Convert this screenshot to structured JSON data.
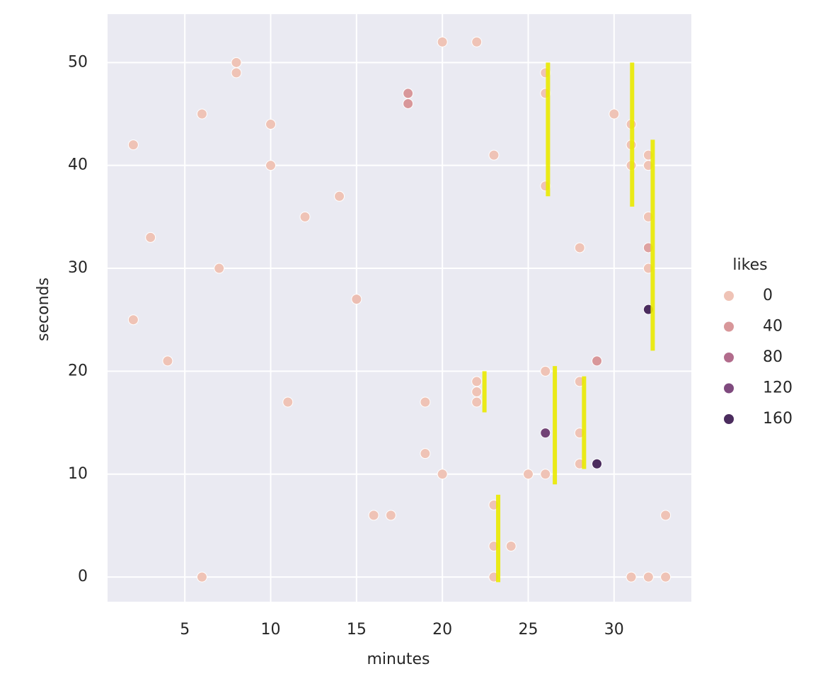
{
  "chart_data": {
    "type": "scatter",
    "xlabel": "minutes",
    "ylabel": "seconds",
    "xlim": [
      0.5,
      34.5
    ],
    "ylim": [
      -2.4,
      54.7
    ],
    "xticks": [
      5,
      10,
      15,
      20,
      25,
      30
    ],
    "yticks": [
      0,
      10,
      20,
      30,
      40,
      50
    ],
    "grid": true,
    "x": [
      2,
      2,
      3,
      4,
      6,
      6,
      7,
      8,
      8,
      10,
      10,
      11,
      12,
      14,
      15,
      16,
      17,
      18,
      18,
      19,
      19,
      20,
      20,
      22,
      22,
      22,
      22,
      23,
      23,
      23,
      23,
      24,
      25,
      26,
      26,
      26,
      26,
      26,
      26,
      28,
      28,
      28,
      28,
      29,
      29,
      30,
      31,
      31,
      31,
      31,
      32,
      32,
      32,
      32,
      32,
      32,
      32,
      33,
      33
    ],
    "y": [
      42,
      25,
      33,
      21,
      45,
      0,
      30,
      50,
      49,
      44,
      40,
      17,
      35,
      37,
      27,
      6,
      6,
      47,
      46,
      17,
      12,
      52,
      10,
      52,
      19,
      18,
      17,
      41,
      7,
      3,
      0,
      3,
      10,
      49,
      47,
      38,
      20,
      14,
      10,
      32,
      19,
      14,
      11,
      21,
      11,
      45,
      44,
      42,
      40,
      0,
      41,
      40,
      35,
      32,
      30,
      26,
      0,
      6,
      0
    ],
    "hue": {
      "name": "likes",
      "values": [
        0,
        0,
        0,
        0,
        0,
        0,
        0,
        0,
        0,
        0,
        0,
        0,
        0,
        0,
        5,
        0,
        0,
        40,
        40,
        0,
        0,
        0,
        0,
        0,
        0,
        0,
        0,
        0,
        0,
        0,
        0,
        0,
        0,
        0,
        0,
        0,
        0,
        130,
        0,
        0,
        0,
        0,
        0,
        40,
        180,
        0,
        0,
        0,
        0,
        0,
        0,
        0,
        0,
        30,
        0,
        180,
        0,
        0,
        0
      ],
      "legend": [
        0,
        40,
        80,
        120,
        160
      ],
      "colors": [
        "#efc3b6",
        "#d8979a",
        "#b26c8c",
        "#7f4a7e",
        "#4b2c5e"
      ]
    },
    "segments": {
      "color": "#eaea00",
      "x": [
        26.15,
        31.05,
        32.25,
        22.45,
        26.55,
        28.25,
        23.25
      ],
      "ymin": [
        37,
        36,
        22,
        16,
        9,
        10.5,
        -0.5
      ],
      "ymax": [
        50,
        50,
        42.5,
        20,
        20.5,
        19.5,
        8
      ]
    }
  }
}
